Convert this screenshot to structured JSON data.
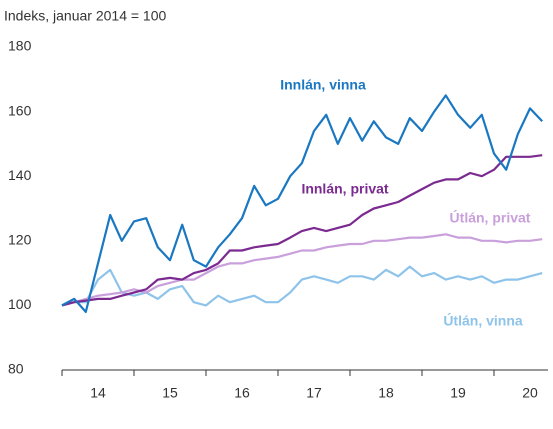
{
  "chart_data": {
    "type": "line",
    "y_axis_label": "Indeks, januar 2014 = 100",
    "x": [
      2014,
      2014.17,
      2014.33,
      2014.5,
      2014.67,
      2014.83,
      2015,
      2015.17,
      2015.33,
      2015.5,
      2015.67,
      2015.83,
      2016,
      2016.17,
      2016.33,
      2016.5,
      2016.67,
      2016.83,
      2017,
      2017.17,
      2017.33,
      2017.5,
      2017.67,
      2017.83,
      2018,
      2018.17,
      2018.33,
      2018.5,
      2018.67,
      2018.83,
      2019,
      2019.17,
      2019.33,
      2019.5,
      2019.67,
      2019.83,
      2020,
      2020.17,
      2020.33,
      2020.5,
      2020.67
    ],
    "series": [
      {
        "name": "Innlán, vinna",
        "color": "#1a78c2",
        "values": [
          100,
          102,
          98,
          113,
          128,
          120,
          126,
          127,
          118,
          114,
          125,
          114,
          112,
          118,
          122,
          127,
          137,
          131,
          133,
          140,
          144,
          154,
          159,
          150,
          158,
          151,
          157,
          152,
          150,
          158,
          154,
          160,
          165,
          159,
          155,
          159,
          147,
          142,
          153,
          161,
          157
        ]
      },
      {
        "name": "Innlán, privat",
        "color": "#7b2a90",
        "values": [
          100,
          101,
          101.5,
          102,
          102,
          103,
          104,
          105,
          108,
          108.5,
          108,
          110,
          111,
          113,
          117,
          117,
          118,
          118.5,
          119,
          121,
          123,
          124,
          123,
          124,
          125,
          128,
          130,
          131,
          132,
          134,
          136,
          138,
          139,
          139,
          141,
          140,
          142,
          146,
          146,
          146,
          146.5
        ]
      },
      {
        "name": "Útlán, privat",
        "color": "#c9a0dc",
        "values": [
          100,
          101,
          102,
          103,
          103.5,
          104,
          105,
          104,
          106,
          107,
          108,
          108,
          110,
          112,
          113,
          113,
          114,
          114.5,
          115,
          116,
          117,
          117,
          118,
          118.5,
          119,
          119,
          120,
          120,
          120.5,
          121,
          121,
          121.5,
          122,
          121,
          121,
          120,
          120,
          119.5,
          120,
          120,
          120.5
        ]
      },
      {
        "name": "Útlán, vinna",
        "color": "#8ec3ea",
        "values": [
          100,
          101,
          101,
          108,
          111,
          104,
          103,
          104,
          102,
          105,
          106,
          101,
          100,
          103,
          101,
          102,
          103,
          101,
          101,
          104,
          108,
          109,
          108,
          107,
          109,
          109,
          108,
          111,
          109,
          112,
          109,
          110,
          108,
          109,
          108,
          109,
          107,
          108,
          108,
          109,
          110
        ]
      }
    ],
    "xlim": [
      2014,
      2020.75
    ],
    "xticks": [
      {
        "value": 2014.5,
        "label": "14"
      },
      {
        "value": 2015.5,
        "label": "15"
      },
      {
        "value": 2016.5,
        "label": "16"
      },
      {
        "value": 2017.5,
        "label": "17"
      },
      {
        "value": 2018.5,
        "label": "18"
      },
      {
        "value": 2019.5,
        "label": "19"
      },
      {
        "value": 2020.5,
        "label": "20"
      }
    ],
    "xticks_minor": [
      2014,
      2015,
      2016,
      2017,
      2018,
      2019,
      2020
    ],
    "ylim": [
      80,
      180
    ],
    "yticks": [
      80,
      100,
      120,
      140,
      160,
      180
    ],
    "grid": false
  }
}
